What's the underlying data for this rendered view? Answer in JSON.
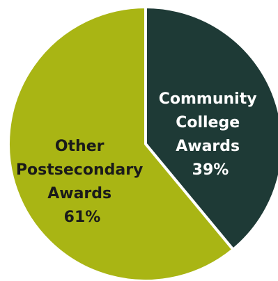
{
  "chart_data": {
    "type": "pie",
    "start_angle_deg": 0,
    "direction": "clockwise",
    "slices": [
      {
        "label_lines": [
          "Community",
          "College",
          "Awards"
        ],
        "value_text": "39%",
        "value": 39,
        "color": "#1e3a36",
        "text_color": "#ffffff"
      },
      {
        "label_lines": [
          "Other",
          "Postsecondary",
          "Awards"
        ],
        "value_text": "61%",
        "value": 61,
        "color": "#a9b514",
        "text_color": "#1a1a1a"
      }
    ]
  }
}
